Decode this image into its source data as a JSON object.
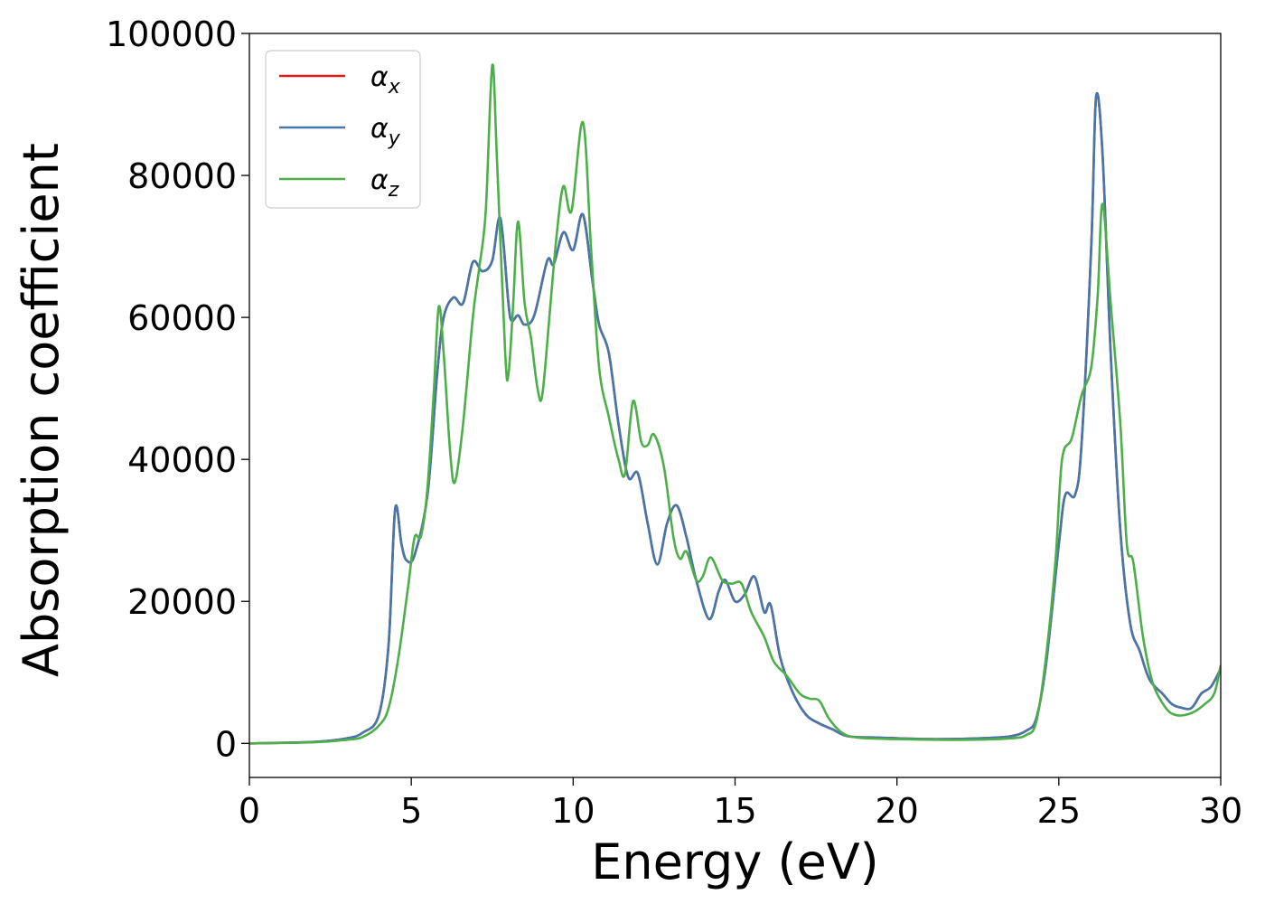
{
  "chart_data": {
    "type": "line",
    "title": "",
    "xlabel": "Energy (eV)",
    "ylabel": "Absorption coefficient",
    "xlim": [
      0,
      30
    ],
    "ylim": [
      -4800,
      100000
    ],
    "xticks": [
      0,
      5,
      10,
      15,
      20,
      25,
      30
    ],
    "yticks": [
      0,
      20000,
      40000,
      60000,
      80000,
      100000
    ],
    "grid": false,
    "legend_position": "top-left",
    "series": [
      {
        "name": "α",
        "sub": "x",
        "color": "#e41a1c",
        "points": [
          [
            0,
            0
          ],
          [
            2,
            200
          ],
          [
            3,
            700
          ],
          [
            3.5,
            1500
          ],
          [
            4,
            4000
          ],
          [
            4.3,
            14000
          ],
          [
            4.5,
            33000
          ],
          [
            4.7,
            28000
          ],
          [
            4.85,
            25800
          ],
          [
            5.1,
            26500
          ],
          [
            5.5,
            35000
          ],
          [
            5.8,
            52000
          ],
          [
            6.0,
            60000
          ],
          [
            6.3,
            62800
          ],
          [
            6.6,
            62000
          ],
          [
            6.9,
            67800
          ],
          [
            7.2,
            66500
          ],
          [
            7.5,
            68000
          ],
          [
            7.75,
            74000
          ],
          [
            8.0,
            62000
          ],
          [
            8.1,
            59500
          ],
          [
            8.3,
            60300
          ],
          [
            8.5,
            59000
          ],
          [
            8.8,
            60300
          ],
          [
            9.2,
            68000
          ],
          [
            9.4,
            67500
          ],
          [
            9.7,
            72000
          ],
          [
            10.0,
            69500
          ],
          [
            10.3,
            74500
          ],
          [
            10.6,
            65000
          ],
          [
            10.8,
            59000
          ],
          [
            11.1,
            55000
          ],
          [
            11.4,
            45000
          ],
          [
            11.7,
            37500
          ],
          [
            12.0,
            38000
          ],
          [
            12.3,
            31000
          ],
          [
            12.6,
            25200
          ],
          [
            12.9,
            31000
          ],
          [
            13.2,
            33500
          ],
          [
            13.5,
            29000
          ],
          [
            13.8,
            23000
          ],
          [
            14.2,
            17500
          ],
          [
            14.5,
            21500
          ],
          [
            14.7,
            23000
          ],
          [
            15.0,
            20000
          ],
          [
            15.3,
            21000
          ],
          [
            15.6,
            23500
          ],
          [
            15.9,
            18500
          ],
          [
            16.1,
            19500
          ],
          [
            16.4,
            12000
          ],
          [
            16.8,
            7000
          ],
          [
            17.2,
            4000
          ],
          [
            17.6,
            2800
          ],
          [
            18.0,
            2000
          ],
          [
            18.5,
            1000
          ],
          [
            19.5,
            800
          ],
          [
            21,
            600
          ],
          [
            22.5,
            700
          ],
          [
            23.5,
            1000
          ],
          [
            24.0,
            1800
          ],
          [
            24.3,
            3500
          ],
          [
            24.6,
            11000
          ],
          [
            25.0,
            28000
          ],
          [
            25.2,
            35000
          ],
          [
            25.5,
            35000
          ],
          [
            25.7,
            42000
          ],
          [
            26.0,
            70000
          ],
          [
            26.15,
            91000
          ],
          [
            26.35,
            83000
          ],
          [
            26.6,
            55000
          ],
          [
            26.9,
            30000
          ],
          [
            27.2,
            17000
          ],
          [
            27.5,
            13000
          ],
          [
            27.8,
            9000
          ],
          [
            28.2,
            7000
          ],
          [
            28.5,
            5500
          ],
          [
            28.8,
            5000
          ],
          [
            29.1,
            5000
          ],
          [
            29.4,
            7000
          ],
          [
            29.7,
            8000
          ],
          [
            30.0,
            10500
          ]
        ]
      },
      {
        "name": "α",
        "sub": "y",
        "color": "#4477aa",
        "points": [
          [
            0,
            0
          ],
          [
            2,
            200
          ],
          [
            3,
            700
          ],
          [
            3.5,
            1500
          ],
          [
            4,
            4000
          ],
          [
            4.3,
            14000
          ],
          [
            4.5,
            33000
          ],
          [
            4.7,
            28000
          ],
          [
            4.85,
            25800
          ],
          [
            5.1,
            26500
          ],
          [
            5.5,
            35000
          ],
          [
            5.8,
            52000
          ],
          [
            6.0,
            60000
          ],
          [
            6.3,
            62800
          ],
          [
            6.6,
            62000
          ],
          [
            6.9,
            67800
          ],
          [
            7.2,
            66500
          ],
          [
            7.5,
            68000
          ],
          [
            7.75,
            74000
          ],
          [
            8.0,
            62000
          ],
          [
            8.1,
            59500
          ],
          [
            8.3,
            60300
          ],
          [
            8.5,
            59000
          ],
          [
            8.8,
            60300
          ],
          [
            9.2,
            68000
          ],
          [
            9.4,
            67500
          ],
          [
            9.7,
            72000
          ],
          [
            10.0,
            69500
          ],
          [
            10.3,
            74500
          ],
          [
            10.6,
            65000
          ],
          [
            10.8,
            59000
          ],
          [
            11.1,
            55000
          ],
          [
            11.4,
            45000
          ],
          [
            11.7,
            37500
          ],
          [
            12.0,
            38000
          ],
          [
            12.3,
            31000
          ],
          [
            12.6,
            25200
          ],
          [
            12.9,
            31000
          ],
          [
            13.2,
            33500
          ],
          [
            13.5,
            29000
          ],
          [
            13.8,
            23000
          ],
          [
            14.2,
            17500
          ],
          [
            14.5,
            21500
          ],
          [
            14.7,
            23000
          ],
          [
            15.0,
            20000
          ],
          [
            15.3,
            21000
          ],
          [
            15.6,
            23500
          ],
          [
            15.9,
            18500
          ],
          [
            16.1,
            19500
          ],
          [
            16.4,
            12000
          ],
          [
            16.8,
            7000
          ],
          [
            17.2,
            4000
          ],
          [
            17.6,
            2800
          ],
          [
            18.0,
            2000
          ],
          [
            18.5,
            1000
          ],
          [
            19.5,
            800
          ],
          [
            21,
            600
          ],
          [
            22.5,
            700
          ],
          [
            23.5,
            1000
          ],
          [
            24.0,
            1800
          ],
          [
            24.3,
            3500
          ],
          [
            24.6,
            11000
          ],
          [
            25.0,
            28000
          ],
          [
            25.2,
            35000
          ],
          [
            25.5,
            35000
          ],
          [
            25.7,
            42000
          ],
          [
            26.0,
            70000
          ],
          [
            26.15,
            91000
          ],
          [
            26.35,
            83000
          ],
          [
            26.6,
            55000
          ],
          [
            26.9,
            30000
          ],
          [
            27.2,
            17000
          ],
          [
            27.5,
            13000
          ],
          [
            27.8,
            9000
          ],
          [
            28.2,
            7000
          ],
          [
            28.5,
            5500
          ],
          [
            28.8,
            5000
          ],
          [
            29.1,
            5000
          ],
          [
            29.4,
            7000
          ],
          [
            29.7,
            8000
          ],
          [
            30.0,
            10500
          ]
        ]
      },
      {
        "name": "α",
        "sub": "z",
        "color": "#4daf4a",
        "points": [
          [
            0,
            0
          ],
          [
            2,
            150
          ],
          [
            3,
            500
          ],
          [
            3.5,
            900
          ],
          [
            4,
            2500
          ],
          [
            4.3,
            5000
          ],
          [
            4.6,
            12000
          ],
          [
            4.9,
            22000
          ],
          [
            5.1,
            29000
          ],
          [
            5.3,
            29200
          ],
          [
            5.5,
            36000
          ],
          [
            5.7,
            50000
          ],
          [
            5.85,
            61500
          ],
          [
            6.0,
            55000
          ],
          [
            6.2,
            41000
          ],
          [
            6.35,
            36800
          ],
          [
            6.6,
            45000
          ],
          [
            6.9,
            60000
          ],
          [
            7.1,
            67000
          ],
          [
            7.3,
            75000
          ],
          [
            7.5,
            95500
          ],
          [
            7.65,
            82000
          ],
          [
            7.9,
            55000
          ],
          [
            8.0,
            52000
          ],
          [
            8.15,
            62000
          ],
          [
            8.3,
            73500
          ],
          [
            8.5,
            62000
          ],
          [
            8.7,
            57000
          ],
          [
            8.9,
            50000
          ],
          [
            9.05,
            49200
          ],
          [
            9.3,
            62000
          ],
          [
            9.5,
            72000
          ],
          [
            9.7,
            78500
          ],
          [
            9.95,
            75000
          ],
          [
            10.3,
            87500
          ],
          [
            10.55,
            70000
          ],
          [
            10.8,
            53000
          ],
          [
            11.1,
            46000
          ],
          [
            11.4,
            40000
          ],
          [
            11.6,
            38000
          ],
          [
            11.85,
            48200
          ],
          [
            12.1,
            42500
          ],
          [
            12.3,
            42000
          ],
          [
            12.5,
            43500
          ],
          [
            12.8,
            39000
          ],
          [
            13.1,
            29000
          ],
          [
            13.3,
            26000
          ],
          [
            13.5,
            27000
          ],
          [
            13.8,
            23000
          ],
          [
            14.0,
            23500
          ],
          [
            14.25,
            26200
          ],
          [
            14.6,
            23000
          ],
          [
            14.9,
            22500
          ],
          [
            15.2,
            22500
          ],
          [
            15.5,
            18500
          ],
          [
            15.9,
            15000
          ],
          [
            16.2,
            11500
          ],
          [
            16.6,
            9500
          ],
          [
            17.0,
            7000
          ],
          [
            17.3,
            6300
          ],
          [
            17.6,
            6000
          ],
          [
            17.9,
            3500
          ],
          [
            18.3,
            1500
          ],
          [
            18.8,
            800
          ],
          [
            20,
            600
          ],
          [
            22,
            500
          ],
          [
            23.5,
            700
          ],
          [
            24.0,
            1200
          ],
          [
            24.3,
            3000
          ],
          [
            24.6,
            12000
          ],
          [
            24.9,
            26000
          ],
          [
            25.1,
            40000
          ],
          [
            25.4,
            43000
          ],
          [
            25.7,
            49000
          ],
          [
            26.0,
            53000
          ],
          [
            26.2,
            63000
          ],
          [
            26.35,
            76000
          ],
          [
            26.6,
            62000
          ],
          [
            26.9,
            45000
          ],
          [
            27.1,
            28000
          ],
          [
            27.3,
            25500
          ],
          [
            27.6,
            15000
          ],
          [
            27.9,
            8500
          ],
          [
            28.3,
            5000
          ],
          [
            28.6,
            4000
          ],
          [
            28.9,
            4000
          ],
          [
            29.2,
            4500
          ],
          [
            29.5,
            5500
          ],
          [
            29.8,
            7000
          ],
          [
            30.0,
            11000
          ]
        ]
      }
    ]
  }
}
